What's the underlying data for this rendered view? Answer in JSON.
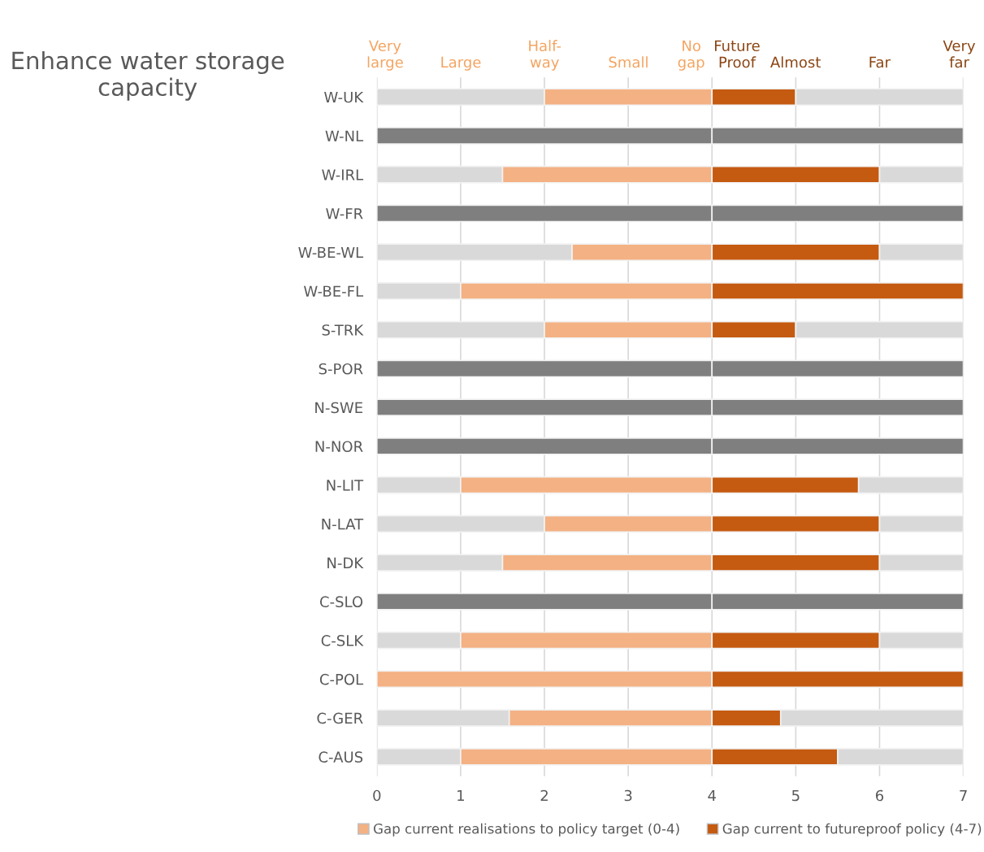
{
  "chart_data": {
    "type": "bar",
    "orientation": "horizontal",
    "stacked": true,
    "title": "Enhance water storage capacity",
    "categories": [
      "W-UK",
      "W-NL",
      "W-IRL",
      "W-FR",
      "W-BE-WL",
      "W-BE-FL",
      "S-TRK",
      "S-POR",
      "N-SWE",
      "N-NOR",
      "N-LIT",
      "N-LAT",
      "N-DK",
      "C-SLO",
      "C-SLK",
      "C-POL",
      "C-GER",
      "C-AUS"
    ],
    "series": [
      {
        "color": "#d9d9d9",
        "values": [
          2,
          0,
          1.5,
          0,
          2.33,
          1,
          2,
          0,
          0,
          0,
          1,
          2,
          1.5,
          0,
          1,
          0,
          1.58,
          1
        ]
      },
      {
        "name": "Gap current realisations to policy target (0-4)",
        "color": "#f4b183",
        "values": [
          2,
          0,
          2.5,
          0,
          1.67,
          3,
          2,
          0,
          0,
          0,
          3,
          2,
          2.5,
          0,
          3,
          4,
          2.42,
          3
        ]
      },
      {
        "name": "Gap current to futureproof policy (4-7)",
        "color": "#c55a11",
        "values": [
          1,
          0,
          2,
          0,
          2,
          3,
          1,
          0,
          0,
          0,
          1.75,
          2,
          2,
          0,
          2,
          3,
          0.82,
          1.5
        ]
      },
      {
        "color": "#d9d9d9",
        "values": [
          2,
          0,
          1,
          0,
          1,
          0,
          2,
          0,
          0,
          0,
          1.25,
          1,
          1,
          0,
          1,
          0,
          2.18,
          1.5
        ]
      },
      {
        "color": "#7f7f7f",
        "values": [
          0,
          4,
          0,
          4,
          0,
          0,
          0,
          4,
          4,
          4,
          0,
          0,
          0,
          4,
          0,
          0,
          0,
          0
        ]
      },
      {
        "color": "#7f7f7f",
        "values": [
          0,
          3,
          0,
          3,
          0,
          0,
          0,
          3,
          3,
          3,
          0,
          0,
          0,
          3,
          0,
          0,
          0,
          0
        ]
      }
    ],
    "xlim": [
      0,
      7
    ],
    "xticks": [
      0,
      1,
      2,
      3,
      4,
      5,
      6,
      7
    ],
    "annotations": [
      "Very\nlarge",
      "Large",
      "Half-\nway",
      "Small",
      "No\ngap",
      "Future\nProof",
      "Almost",
      "Far",
      "Very\nfar"
    ],
    "grid": "x",
    "legend": "bottom"
  }
}
